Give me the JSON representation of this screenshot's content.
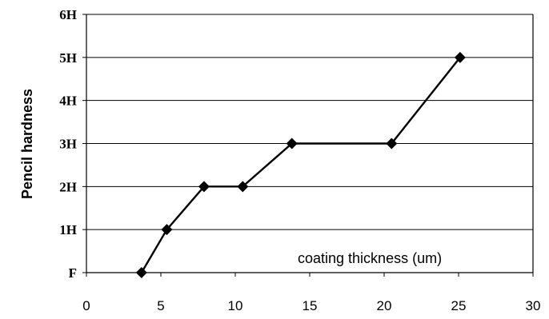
{
  "chart_data": {
    "type": "line",
    "ylabel": "Pencil hardness",
    "annotation": "coating thickness (um)",
    "xlim": [
      0,
      30
    ],
    "xticks": [
      "0",
      "5",
      "10",
      "15",
      "20",
      "25",
      "30"
    ],
    "ylim": [
      0,
      6
    ],
    "yticks": [
      "F",
      "1H",
      "2H",
      "3H",
      "4H",
      "5H",
      "6H"
    ],
    "grid": "horizontal",
    "series": [
      {
        "x": [
          3.7,
          5.4,
          7.9,
          10.5,
          13.8,
          20.5,
          25.1
        ],
        "y": [
          0,
          1,
          2,
          2,
          3,
          3,
          5
        ],
        "marker": "diamond",
        "color": "#000000"
      }
    ]
  }
}
